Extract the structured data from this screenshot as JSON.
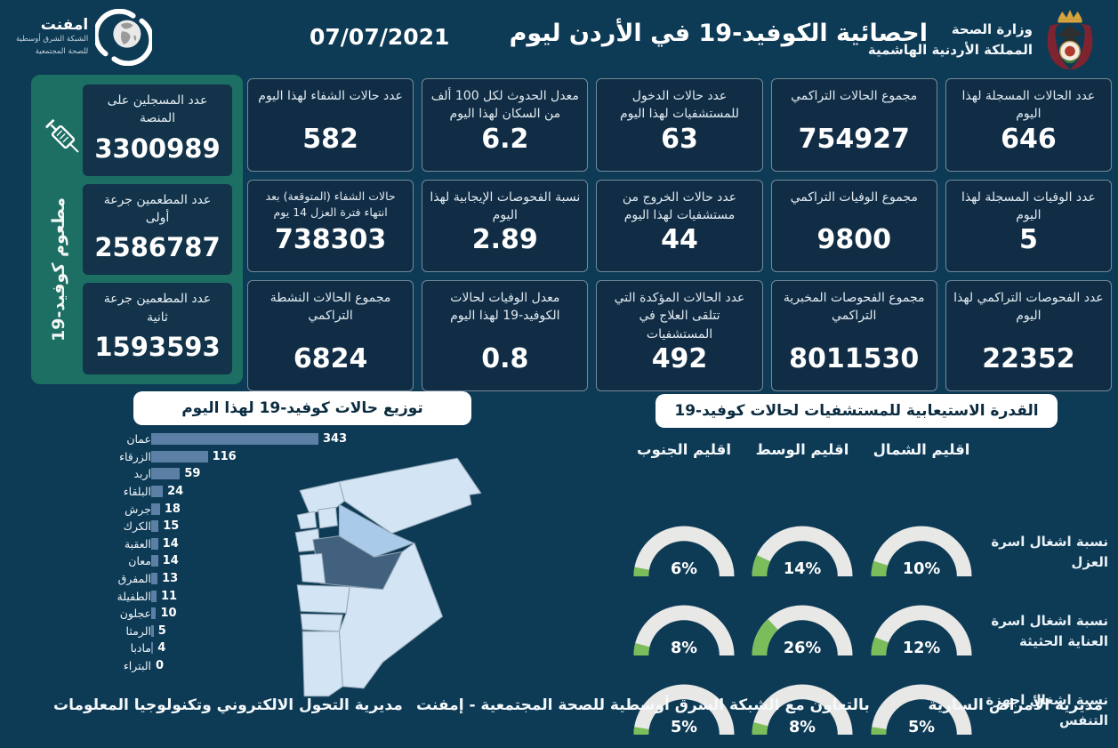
{
  "header": {
    "title": "احصائية الكوفيد-19 في الأردن ليوم",
    "date": "07/07/2021",
    "ministry": {
      "line1": "وزارة الصحة",
      "line2": "المملكة الأردنية الهاشمية"
    },
    "emphnet": {
      "name": "امفنت",
      "line1": "الشبكة الشرق أوسطية",
      "line2": "للصحة المجتمعية"
    }
  },
  "vaccine_panel": {
    "vertical_label": "مطعوم كوفيد-19",
    "cards": [
      {
        "label": "عدد المسجلين على المنصة",
        "value": "3300989"
      },
      {
        "label": "عدد المطعمين جرعة أولى",
        "value": "2586787"
      },
      {
        "label": "عدد المطعمين جرعة ثانية",
        "value": "1593593"
      }
    ]
  },
  "stats": [
    {
      "label": "عدد الحالات المسجلة لهذا اليوم",
      "value": "646"
    },
    {
      "label": "مجموع الحالات التراكمي",
      "value": "754927"
    },
    {
      "label": "عدد حالات الدخول للمستشفيات لهذا اليوم",
      "value": "63"
    },
    {
      "label": "معدل الحدوث لكل 100 ألف من السكان لهذا اليوم",
      "value": "6.2"
    },
    {
      "label": "عدد حالات الشفاء لهذا اليوم",
      "value": "582"
    },
    {
      "label": "عدد الوفيات المسجلة لهذا اليوم",
      "value": "5"
    },
    {
      "label": "مجموع الوفيات التراكمي",
      "value": "9800"
    },
    {
      "label": "عدد حالات الخروج من مستشفيات لهذا اليوم",
      "value": "44"
    },
    {
      "label": "نسبة الفحوصات الإيجابية لهذا اليوم",
      "value": "2.89"
    },
    {
      "label": "حالات الشفاء (المتوقعة) بعد انتهاء فترة العزل 14 يوم",
      "value": "738303"
    },
    {
      "label": "عدد الفحوصات التراكمي لهذا اليوم",
      "value": "22352"
    },
    {
      "label": "مجموع الفحوصات المخبرية التراكمي",
      "value": "8011530"
    },
    {
      "label": "عدد الحالات المؤكدة التي تتلقى العلاج في المستشفيات",
      "value": "492"
    },
    {
      "label": "معدل الوفيات لحالات الكوفيد-19 لهذا اليوم",
      "value": "0.8"
    },
    {
      "label": "مجموع الحالات النشطة التراكمي",
      "value": "6824"
    }
  ],
  "distribution": {
    "region_fills": {
      "عمان": "dark",
      "الزرقاء": "medium"
    }
  },
  "footer": {
    "right": "مديرية الأمراض السارية",
    "center": "بالتعاون مع الشبكة الشرق أوسطية للصحة المجتمعية - إمفنت",
    "left": "مديرية التحول الالكتروني وتكنولوجيا المعلومات"
  },
  "colors": {
    "background": "#0d3a55",
    "card": "#112d45",
    "vaccine_panel": "#1d6e63",
    "bar": "#5c80a5",
    "gauge_fill": "#7cbd5b",
    "gauge_track": "#e8e8e6",
    "map_light": "#d3e4f4",
    "map_medium": "#a9cae9",
    "map_dark": "#41617f"
  },
  "chart_data": [
    {
      "type": "bar",
      "orientation": "horizontal",
      "title": "توزيع حالات كوفيد-19 لهذا اليوم",
      "categories": [
        "عمان",
        "الزرقاء",
        "اربد",
        "البلقاء",
        "جرش",
        "الكرك",
        "العقبة",
        "معان",
        "المفرق",
        "الطفيلة",
        "عجلون",
        "الرمثا",
        "مادبا",
        "البتراء"
      ],
      "values": [
        343,
        116,
        59,
        24,
        18,
        15,
        14,
        14,
        13,
        11,
        10,
        5,
        4,
        0
      ],
      "xlim": [
        0,
        343
      ],
      "data_labels": true,
      "legend": false
    },
    {
      "type": "table",
      "style": "semicircle-gauges",
      "title": "القدرة الاستيعابية للمستشفيات لحالات كوفيد-19",
      "unit": "%",
      "columns": [
        "اقليم الشمال",
        "اقليم الوسط",
        "اقليم الجنوب"
      ],
      "rows": [
        {
          "label": "نسبة اشغال اسرة العزل",
          "values": [
            10,
            14,
            6
          ]
        },
        {
          "label": "نسبة اشغال اسرة العناية الحثيثة",
          "values": [
            12,
            26,
            8
          ]
        },
        {
          "label": "نسبة اشغال اجهزة التنفس",
          "values": [
            5,
            8,
            5
          ]
        }
      ]
    }
  ]
}
